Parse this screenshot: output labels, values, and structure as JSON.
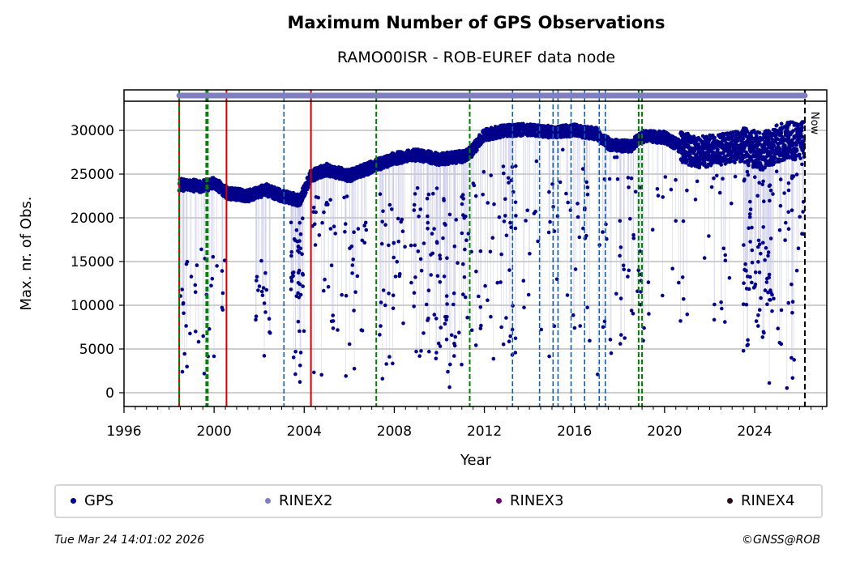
{
  "chart_data": {
    "type": "scatter",
    "title": "Maximum Number of GPS Observations",
    "subtitle": "RAMO00ISR - ROB-EUREF data node",
    "xlabel": "Year",
    "ylabel": "Max. nr. of Obs.",
    "xlim": [
      1996,
      2027.2
    ],
    "ylim": [
      -1500,
      34500
    ],
    "x_ticks": [
      "1996",
      "2000",
      "2004",
      "2008",
      "2012",
      "2016",
      "2020",
      "2024"
    ],
    "y_ticks": [
      "0",
      "5000",
      "10000",
      "15000",
      "20000",
      "25000",
      "30000"
    ],
    "grid": "horizontal",
    "now_label": "Now",
    "now_year": 2026.23,
    "rinex2_range": [
      1998.45,
      2026.23
    ],
    "legend_position": "bottom",
    "legend": [
      {
        "label": "GPS",
        "color": "#00008b"
      },
      {
        "label": "RINEX2",
        "color": "#7f7fbf"
      },
      {
        "label": "RINEX3",
        "color": "#6b0a6b"
      },
      {
        "label": "RINEX4",
        "color": "#2a0a1a"
      }
    ],
    "event_lines": [
      {
        "year": 1998.45,
        "style": "red-green"
      },
      {
        "year": 1999.65,
        "style": "green-dashed"
      },
      {
        "year": 1999.72,
        "style": "green-dashed"
      },
      {
        "year": 2000.55,
        "style": "red"
      },
      {
        "year": 2003.1,
        "style": "blue-dashed"
      },
      {
        "year": 2004.3,
        "style": "red"
      },
      {
        "year": 2007.2,
        "style": "green-dashed"
      },
      {
        "year": 2011.35,
        "style": "green-dashed"
      },
      {
        "year": 2013.25,
        "style": "blue-dashed"
      },
      {
        "year": 2014.45,
        "style": "blue-dashed"
      },
      {
        "year": 2015.05,
        "style": "blue-dashed"
      },
      {
        "year": 2015.27,
        "style": "blue-dashed"
      },
      {
        "year": 2015.85,
        "style": "blue-dashed"
      },
      {
        "year": 2016.45,
        "style": "blue-dashed"
      },
      {
        "year": 2017.1,
        "style": "blue-dashed"
      },
      {
        "year": 2017.37,
        "style": "blue-dashed"
      },
      {
        "year": 2018.85,
        "style": "green-dashed"
      },
      {
        "year": 2019.0,
        "style": "green-dashed"
      }
    ],
    "baseline_trend": [
      [
        1998.45,
        23800
      ],
      [
        1999.5,
        23600
      ],
      [
        2000.0,
        24000
      ],
      [
        2000.6,
        22800
      ],
      [
        2001.5,
        22500
      ],
      [
        2002.3,
        23200
      ],
      [
        2003.0,
        22500
      ],
      [
        2003.8,
        22000
      ],
      [
        2004.3,
        24800
      ],
      [
        2005.0,
        25500
      ],
      [
        2006.0,
        24800
      ],
      [
        2007.0,
        25800
      ],
      [
        2008.0,
        26800
      ],
      [
        2009.0,
        27200
      ],
      [
        2010.0,
        26700
      ],
      [
        2011.0,
        27000
      ],
      [
        2011.4,
        27500
      ],
      [
        2012.0,
        29500
      ],
      [
        2013.0,
        30000
      ],
      [
        2014.0,
        30100
      ],
      [
        2015.0,
        29800
      ],
      [
        2016.0,
        30000
      ],
      [
        2017.0,
        29600
      ],
      [
        2017.6,
        28300
      ],
      [
        2018.5,
        28200
      ],
      [
        2019.0,
        29300
      ],
      [
        2020.0,
        29200
      ],
      [
        2020.8,
        28000
      ],
      [
        2021.5,
        27500
      ],
      [
        2022.5,
        27800
      ],
      [
        2023.5,
        28200
      ],
      [
        2024.3,
        27500
      ],
      [
        2025.0,
        28500
      ],
      [
        2026.2,
        29000
      ]
    ],
    "outlier_clusters": [
      {
        "x": [
          1998.5,
          2000.5
        ],
        "y": [
          0,
          17000
        ],
        "n": 35
      },
      {
        "x": [
          2001.8,
          2002.5
        ],
        "y": [
          3000,
          16000
        ],
        "n": 18
      },
      {
        "x": [
          2003.4,
          2004.0
        ],
        "y": [
          500,
          20000
        ],
        "n": 45
      },
      {
        "x": [
          2004.3,
          2006.8
        ],
        "y": [
          1000,
          23000
        ],
        "n": 55
      },
      {
        "x": [
          2007.3,
          2009.5
        ],
        "y": [
          1500,
          24000
        ],
        "n": 60
      },
      {
        "x": [
          2009.5,
          2011.3
        ],
        "y": [
          300,
          24000
        ],
        "n": 70
      },
      {
        "x": [
          2011.3,
          2013.5
        ],
        "y": [
          2000,
          26000
        ],
        "n": 55
      },
      {
        "x": [
          2013.5,
          2018.0
        ],
        "y": [
          2000,
          28000
        ],
        "n": 60
      },
      {
        "x": [
          2018.0,
          2019.1
        ],
        "y": [
          3000,
          25000
        ],
        "n": 30
      },
      {
        "x": [
          2019.2,
          2023.3
        ],
        "y": [
          7000,
          27000
        ],
        "n": 40
      },
      {
        "x": [
          2023.5,
          2024.8
        ],
        "y": [
          0,
          26000
        ],
        "n": 80
      },
      {
        "x": [
          2024.8,
          2026.2
        ],
        "y": [
          300,
          27000
        ],
        "n": 40
      }
    ]
  },
  "footer": {
    "timestamp": "Tue Mar 24 14:01:02 2026",
    "credit": "©GNSS@ROB"
  }
}
